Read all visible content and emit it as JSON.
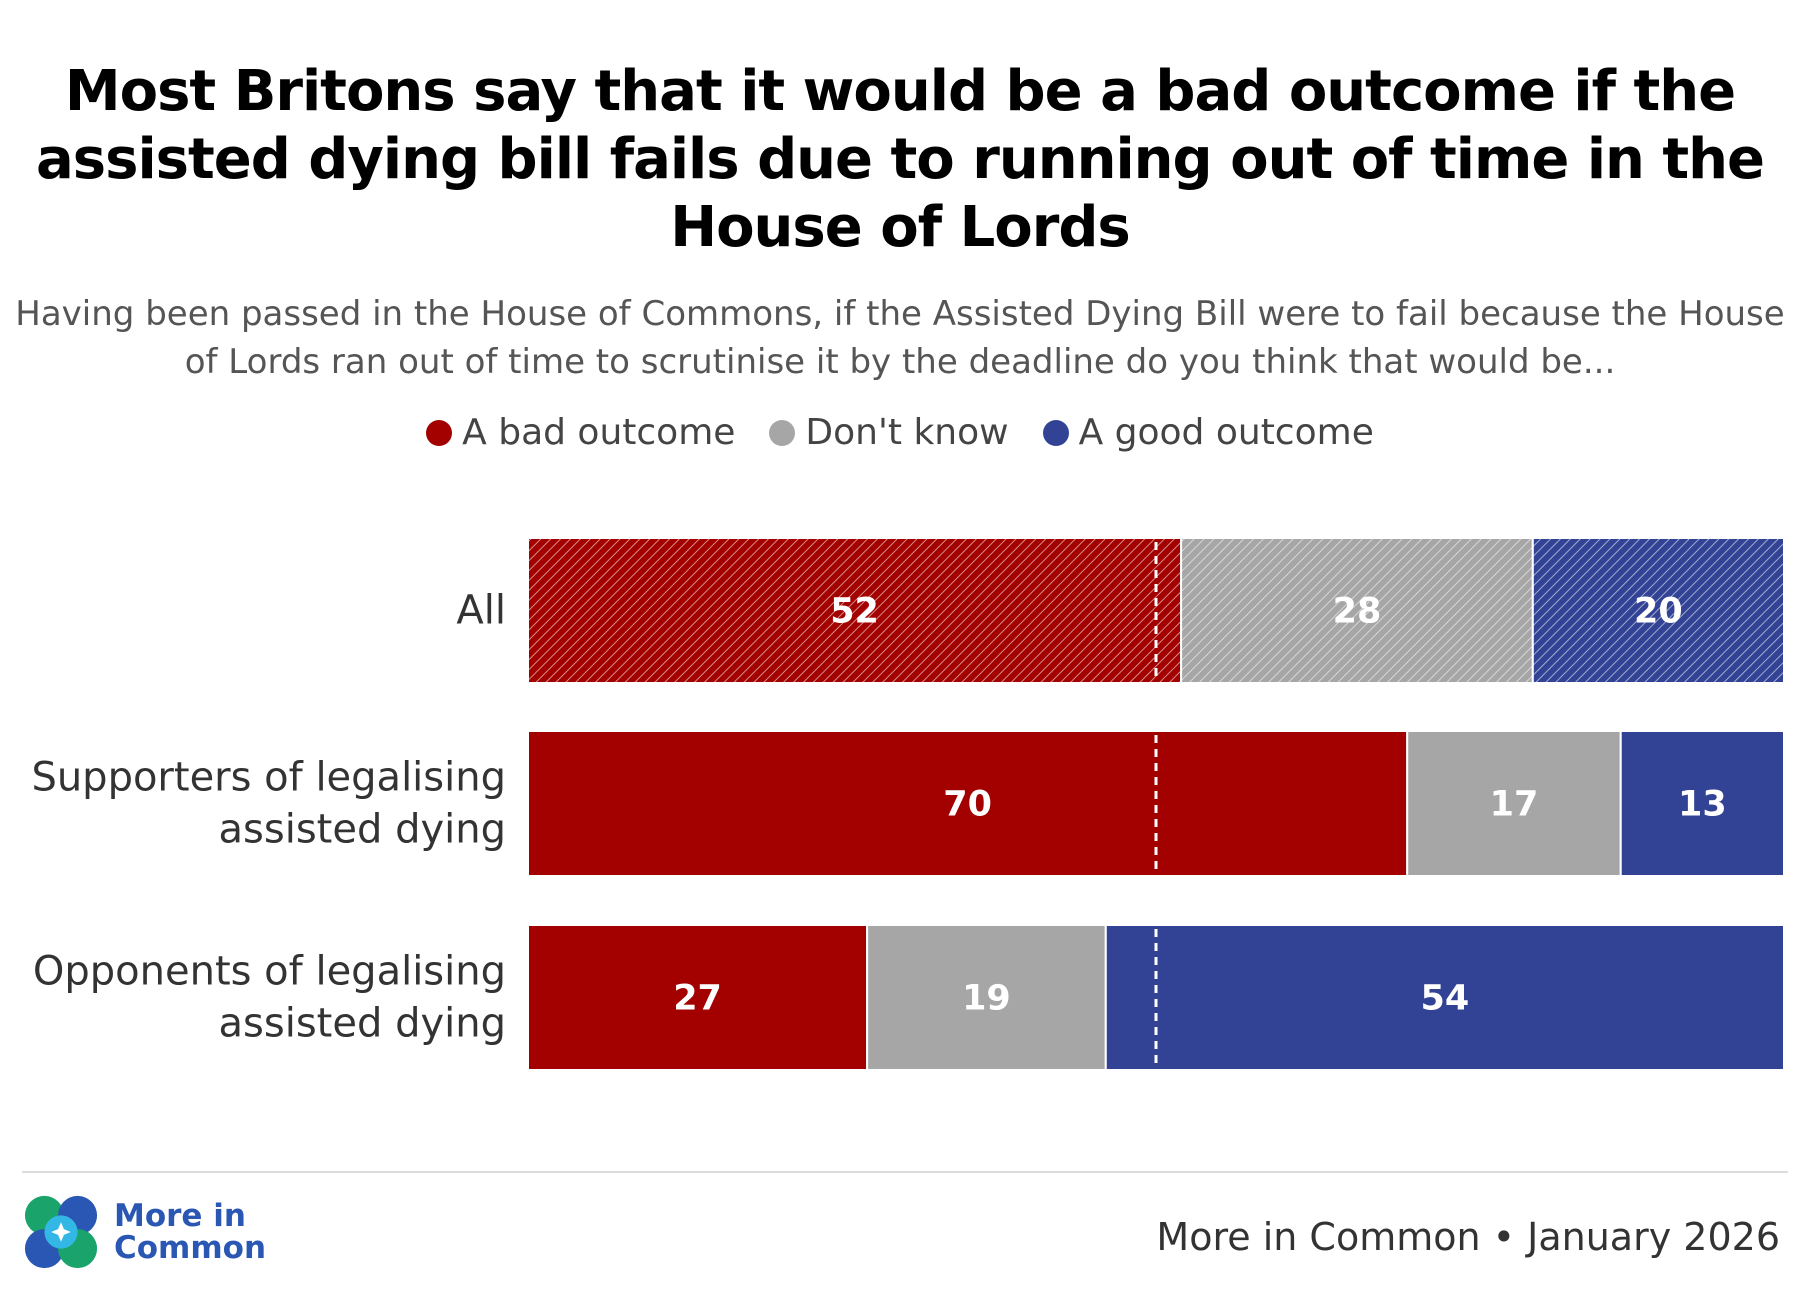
{
  "title": "Most Britons say that it would be a bad outcome if the assisted dying bill fails due to running out of time in the House of Lords",
  "subtitle": "Having been passed in the House of Commons, if the Assisted Dying Bill were to fail because the House of Lords ran out of time to scrutinise it by the deadline do you think that would be...",
  "legend": [
    {
      "label": "A bad outcome",
      "color": "#a30000"
    },
    {
      "label": "Don't know",
      "color": "#a6a6a6"
    },
    {
      "label": "A good outcome",
      "color": "#324395"
    }
  ],
  "chart_data": {
    "type": "bar",
    "orientation": "horizontal",
    "stacked": true,
    "categories": [
      "All",
      "Supporters of legalising assisted dying",
      "Opponents of legalising assisted dying"
    ],
    "category_lines": [
      [
        "All"
      ],
      [
        "Supporters of legalising",
        "assisted dying"
      ],
      [
        "Opponents of legalising",
        "assisted dying"
      ]
    ],
    "series": [
      {
        "name": "A bad outcome",
        "values": [
          52,
          70,
          27
        ],
        "color": "#a30000"
      },
      {
        "name": "Don't know",
        "values": [
          28,
          17,
          19
        ],
        "color": "#a6a6a6"
      },
      {
        "name": "A good outcome",
        "values": [
          20,
          13,
          54
        ],
        "color": "#324395"
      }
    ],
    "hatched_categories": [
      "All"
    ],
    "reference_line": 50,
    "xlim": [
      0,
      100
    ],
    "units": "%"
  },
  "footer": {
    "logo_line1": "More in",
    "logo_line2": "Common",
    "source": "More in Common • January 2026"
  }
}
